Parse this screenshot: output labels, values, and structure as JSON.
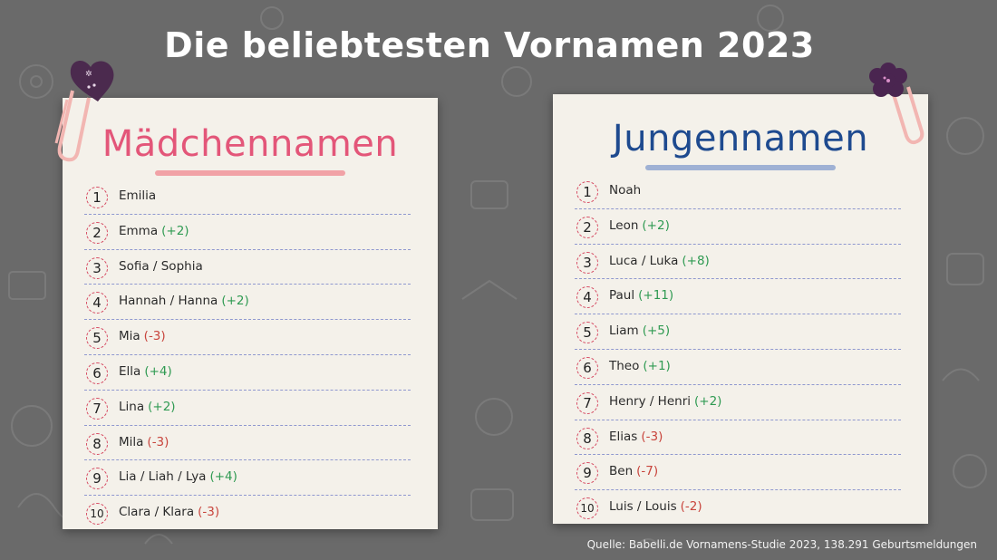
{
  "title": "Die beliebtesten Vornamen 2023",
  "colors": {
    "background": "#6a6a6a",
    "card": "#f4f1ea",
    "girls_heading": "#e35679",
    "boys_heading": "#1e4a8f",
    "up": "#2f9a52",
    "down": "#c8443c"
  },
  "girls": {
    "heading": "Mädchennamen",
    "icon": "heart-clip-icon",
    "items": [
      {
        "rank": "1",
        "name": "Emilia",
        "change": "",
        "dir": ""
      },
      {
        "rank": "2",
        "name": "Emma",
        "change": "(+2)",
        "dir": "up"
      },
      {
        "rank": "3",
        "name": "Sofia / Sophia",
        "change": "",
        "dir": ""
      },
      {
        "rank": "4",
        "name": "Hannah / Hanna",
        "change": "(+2)",
        "dir": "up"
      },
      {
        "rank": "5",
        "name": "Mia",
        "change": "(-3)",
        "dir": "down"
      },
      {
        "rank": "6",
        "name": "Ella",
        "change": "(+4)",
        "dir": "up"
      },
      {
        "rank": "7",
        "name": "Lina",
        "change": "(+2)",
        "dir": "up"
      },
      {
        "rank": "8",
        "name": "Mila",
        "change": "(-3)",
        "dir": "down"
      },
      {
        "rank": "9",
        "name": "Lia / Liah / Lya",
        "change": "(+4)",
        "dir": "up"
      },
      {
        "rank": "10",
        "name": "Clara / Klara",
        "change": "(-3)",
        "dir": "down"
      }
    ]
  },
  "boys": {
    "heading": "Jungennamen",
    "icon": "flower-clip-icon",
    "items": [
      {
        "rank": "1",
        "name": "Noah",
        "change": "",
        "dir": ""
      },
      {
        "rank": "2",
        "name": "Leon",
        "change": "(+2)",
        "dir": "up"
      },
      {
        "rank": "3",
        "name": "Luca / Luka",
        "change": "(+8)",
        "dir": "up"
      },
      {
        "rank": "4",
        "name": "Paul",
        "change": "(+11)",
        "dir": "up"
      },
      {
        "rank": "5",
        "name": "Liam",
        "change": "(+5)",
        "dir": "up"
      },
      {
        "rank": "6",
        "name": "Theo",
        "change": "(+1)",
        "dir": "up"
      },
      {
        "rank": "7",
        "name": "Henry / Henri",
        "change": "(+2)",
        "dir": "up"
      },
      {
        "rank": "8",
        "name": "Elias",
        "change": "(-3)",
        "dir": "down"
      },
      {
        "rank": "9",
        "name": "Ben",
        "change": "(-7)",
        "dir": "down"
      },
      {
        "rank": "10",
        "name": "Luis / Louis",
        "change": "(-2)",
        "dir": "down"
      }
    ]
  },
  "source": "Quelle: Babelli.de Vornamens-Studie 2023, 138.291 Geburtsmeldungen"
}
